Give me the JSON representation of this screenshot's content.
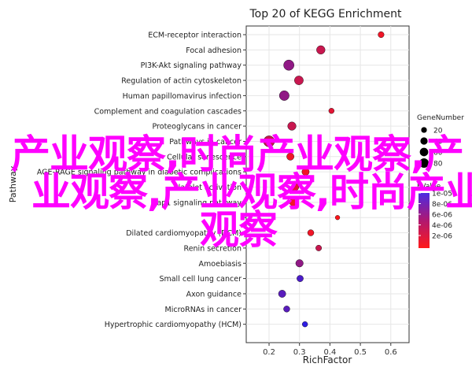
{
  "chart_data": {
    "type": "scatter",
    "title": "Top 20 of KEGG Enrichment",
    "xlabel": "RichFactor",
    "ylabel": "Pathway",
    "xlim": [
      0.125,
      0.66
    ],
    "xticks": [
      "0.2",
      "0.3",
      "0.4",
      "0.5",
      "0.6"
    ],
    "xtick_values": [
      0.2,
      0.3,
      0.4,
      0.5,
      0.6
    ],
    "grid": true,
    "categories": [
      "ECM-receptor interaction",
      "Focal adhesion",
      "PI3K-Akt signaling pathway",
      "Regulation of actin cytoskeleton",
      "Human papillomavirus infection",
      "Complement and coagulation cascades",
      "Proteoglycans in cancer",
      "Pathways in cancer",
      "Cellular senescence",
      "AGE-RAGE signaling pathway in diabetic complications",
      "Platelet activation",
      "Rap1 signaling pathway",
      "",
      "Dilated cardiomyopathy (DCM)",
      "Renin secretion",
      "Amoebiasis",
      "Small cell lung cancer",
      "Axon guidance",
      "MicroRNAs in cancer",
      "Hypertrophic cardiomyopathy (HCM)"
    ],
    "points": [
      {
        "x": 0.568,
        "gene": 14,
        "p": 1.5e-05
      },
      {
        "x": 0.37,
        "gene": 40,
        "p": 1.2e-05
      },
      {
        "x": 0.265,
        "gene": 68,
        "p": 8e-06
      },
      {
        "x": 0.298,
        "gene": 45,
        "p": 1.2e-05
      },
      {
        "x": 0.25,
        "gene": 58,
        "p": 8e-06
      },
      {
        "x": 0.405,
        "gene": 10,
        "p": 1.4e-05
      },
      {
        "x": 0.275,
        "gene": 38,
        "p": 1.2e-05
      },
      {
        "x": 0.2,
        "gene": 80,
        "p": 1.2e-05
      },
      {
        "x": 0.27,
        "gene": 26,
        "p": 1.5e-05
      },
      {
        "x": 0.32,
        "gene": 26,
        "p": 1.5e-05
      },
      {
        "x": 0.285,
        "gene": 30,
        "p": 1.4e-05
      },
      {
        "x": 0.28,
        "gene": 30,
        "p": 1.5e-05
      },
      {
        "x": 0.425,
        "gene": 5,
        "p": 1.6e-05
      },
      {
        "x": 0.337,
        "gene": 16,
        "p": 1.5e-05
      },
      {
        "x": 0.363,
        "gene": 13,
        "p": 1.2e-05
      },
      {
        "x": 0.3,
        "gene": 28,
        "p": 8e-06
      },
      {
        "x": 0.302,
        "gene": 18,
        "p": 3e-06
      },
      {
        "x": 0.243,
        "gene": 26,
        "p": 4e-06
      },
      {
        "x": 0.258,
        "gene": 16,
        "p": 4e-06
      },
      {
        "x": 0.318,
        "gene": 10,
        "p": 1e-06
      }
    ],
    "legend_size": {
      "title": "GeneNumber",
      "values": [
        20,
        40,
        60,
        80
      ],
      "labels": [
        "20",
        "40",
        "60",
        "80"
      ]
    },
    "legend_color": {
      "title": "PValue",
      "labels": [
        "1e-05",
        "8e-06",
        "6e-06",
        "4e-06",
        "2e-06"
      ],
      "low_color": "#ff0000",
      "high_color": "#0000ff"
    }
  },
  "watermark": [
    "产业观察,时尚产业观察,产",
    "业观察,产业观察,时尚产业",
    "观察"
  ]
}
